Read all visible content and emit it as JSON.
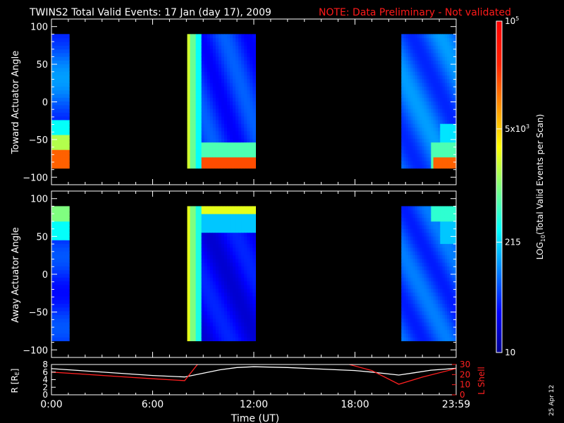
{
  "title": "TWINS2  Total Valid Events: 17 Jan (day  17), 2009",
  "note": "NOTE: Data Preliminary - Not validated",
  "date_stamp": "25 Apr 12",
  "colors": {
    "note": "#ff1a1a",
    "r_line": "#ffffff",
    "lshell_line": "#ff2020"
  },
  "chart_data": [
    {
      "type": "heatmap",
      "ylabel": "Toward Actuator Angle",
      "ylim": [
        -110,
        110
      ],
      "yticks": [
        100,
        50,
        0,
        -50,
        -100
      ],
      "xlim": [
        0,
        24
      ],
      "xticks": [
        "0:00",
        "6:00",
        "12:00",
        "18:00",
        "23:59"
      ],
      "angle_range": [
        -88,
        90
      ],
      "data_blocks": [
        {
          "start_hour": 0.0,
          "end_hour": 1.05,
          "profile": "toward_dawn"
        },
        {
          "start_hour": 8.05,
          "end_hour": 12.1,
          "profile": "toward_mid"
        },
        {
          "start_hour": 20.75,
          "end_hour": 24.0,
          "profile": "toward_dusk"
        }
      ]
    },
    {
      "type": "heatmap",
      "ylabel": "Away Actuator Angle",
      "ylim": [
        -110,
        110
      ],
      "yticks": [
        100,
        50,
        0,
        -50,
        -100
      ],
      "xlim": [
        0,
        24
      ],
      "xticks": [
        "0:00",
        "6:00",
        "12:00",
        "18:00",
        "23:59"
      ],
      "angle_range": [
        -88,
        90
      ],
      "data_blocks": [
        {
          "start_hour": 0.0,
          "end_hour": 1.05,
          "profile": "away_dawn"
        },
        {
          "start_hour": 8.05,
          "end_hour": 12.1,
          "profile": "away_mid"
        },
        {
          "start_hour": 20.75,
          "end_hour": 24.0,
          "profile": "away_dusk"
        }
      ]
    },
    {
      "type": "line",
      "xlabel": "Time (UT)",
      "xticks": [
        "0:00",
        "6:00",
        "12:00",
        "18:00",
        "23:59"
      ],
      "xlim": [
        0,
        24
      ],
      "ylabel": "R [R",
      "ylabel_sub": "E",
      "ylabel_end": "]",
      "ylim": [
        0,
        8
      ],
      "yticks": [
        8,
        6,
        4,
        2,
        0
      ],
      "y2label": "L Shell",
      "y2lim": [
        0,
        30
      ],
      "y2ticks": [
        30,
        20,
        10,
        0
      ],
      "series": [
        {
          "axis": "left",
          "x": [
            0,
            2,
            4,
            6,
            7.9,
            9,
            10,
            11,
            12,
            14,
            16,
            18,
            19,
            20.6,
            21.5,
            22.5,
            24
          ],
          "y": [
            6.9,
            6.3,
            5.7,
            5.1,
            4.7,
            5.7,
            6.6,
            7.2,
            7.4,
            7.2,
            6.8,
            6.4,
            6.0,
            5.2,
            5.8,
            6.5,
            7.0
          ]
        },
        {
          "axis": "right",
          "x": [
            0,
            2,
            4,
            6,
            7.9,
            8.8,
            17.0,
            19.0,
            20.6,
            22.0,
            24
          ],
          "y": [
            22.5,
            20.3,
            18.1,
            15.9,
            14.0,
            33,
            33,
            24.0,
            10.5,
            17.5,
            26.0
          ]
        }
      ]
    }
  ],
  "colorbar": {
    "label_main": "LOG",
    "label_sub": "10",
    "label_rest": "(Total Valid Events per Scan)",
    "ticks": [
      {
        "value": 100000,
        "text": "10",
        "sup": "5"
      },
      {
        "value": 5000,
        "text": "5x10",
        "sup": "3"
      },
      {
        "value": 215,
        "text": "215",
        "sup": ""
      },
      {
        "value": 10,
        "text": "10",
        "sup": ""
      }
    ],
    "range": [
      10,
      100000
    ]
  }
}
